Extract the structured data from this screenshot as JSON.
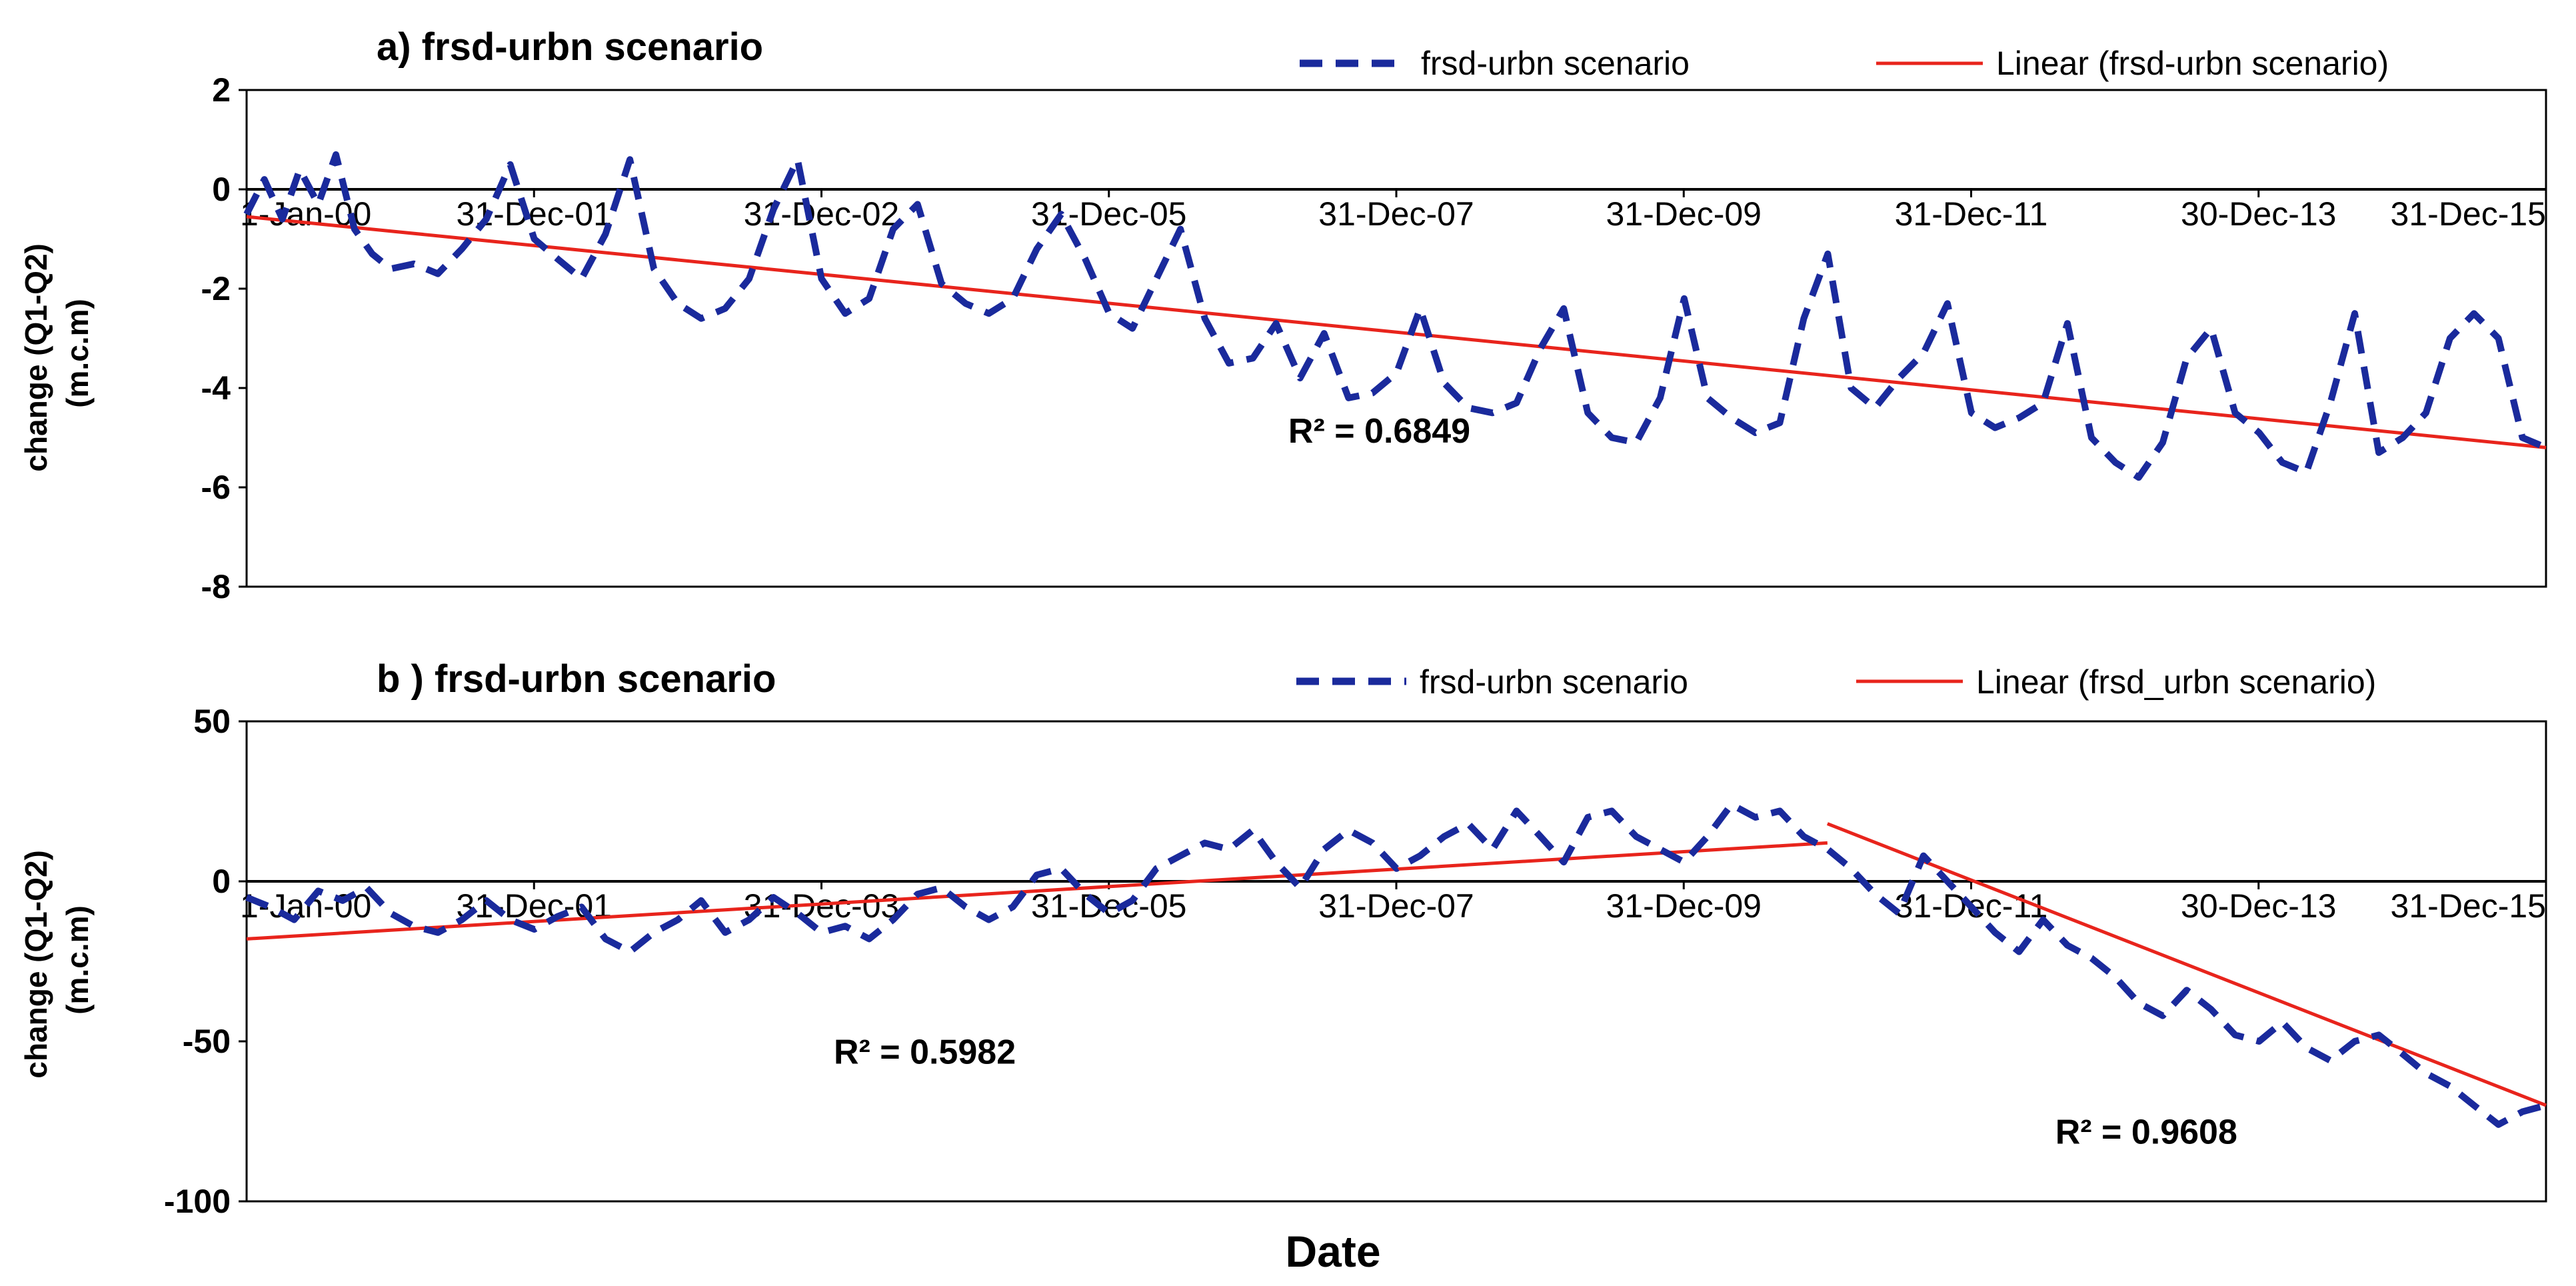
{
  "figure": {
    "xlabel": "Date",
    "colors": {
      "series": "#1a2a9c",
      "trend": "#e8241c",
      "axis": "#000000"
    }
  },
  "chart_data": [
    {
      "type": "line",
      "title": "a) frsd-urbn scenario",
      "ylabel": "change (Q1-Q2) (m.c.m)",
      "ylim": [
        -8,
        2
      ],
      "yticks": [
        "2",
        "0",
        "-2",
        "-4",
        "-6",
        "-8"
      ],
      "xlim": [
        "2000-01-01",
        "2015-12-31"
      ],
      "xtick_labels": [
        "1-Jan-00",
        "31-Dec-01",
        "31-Dec-02",
        "31-Dec-05",
        "31-Dec-07",
        "31-Dec-09",
        "31-Dec-11",
        "30-Dec-13",
        "31-Dec-15"
      ],
      "legend_position": "top-right",
      "series": [
        {
          "name": "frsd-urbn scenario",
          "style": "dashed",
          "x": [
            "2000-01-01",
            "2000-02-15",
            "2000-04-01",
            "2000-05-15",
            "2000-07-01",
            "2000-08-15",
            "2000-10-01",
            "2000-11-15",
            "2001-01-01",
            "2001-03-01",
            "2001-05-01",
            "2001-07-01",
            "2001-09-01",
            "2001-11-01",
            "2002-01-01",
            "2002-03-01",
            "2002-05-01",
            "2002-07-01",
            "2002-09-01",
            "2002-11-01",
            "2003-01-01",
            "2003-03-01",
            "2003-05-01",
            "2003-07-01",
            "2003-09-01",
            "2003-11-01",
            "2004-01-01",
            "2004-03-01",
            "2004-05-01",
            "2004-07-01",
            "2004-09-01",
            "2004-11-01",
            "2005-01-01",
            "2005-03-01",
            "2005-05-01",
            "2005-07-01",
            "2005-09-01",
            "2005-11-01",
            "2006-01-01",
            "2006-03-01",
            "2006-05-01",
            "2006-07-01",
            "2006-09-01",
            "2006-11-01",
            "2007-01-01",
            "2007-03-01",
            "2007-05-01",
            "2007-07-01",
            "2007-09-01",
            "2007-11-01",
            "2008-01-01",
            "2008-03-01",
            "2008-05-01",
            "2008-07-01",
            "2008-09-01",
            "2008-11-01",
            "2009-01-01",
            "2009-03-01",
            "2009-05-01",
            "2009-07-01",
            "2009-09-01",
            "2009-11-01",
            "2010-01-01",
            "2010-03-01",
            "2010-05-01",
            "2010-07-01",
            "2010-09-01",
            "2010-11-01",
            "2011-01-01",
            "2011-03-01",
            "2011-05-01",
            "2011-07-01",
            "2011-09-01",
            "2011-11-01",
            "2012-01-01",
            "2012-03-01",
            "2012-05-01",
            "2012-07-01",
            "2012-09-01",
            "2012-11-01",
            "2013-01-01",
            "2013-03-01",
            "2013-05-01",
            "2013-07-01",
            "2013-09-01",
            "2013-11-01",
            "2014-01-01",
            "2014-03-01",
            "2014-05-01",
            "2014-07-01",
            "2014-09-01",
            "2014-11-01",
            "2015-01-01",
            "2015-03-01",
            "2015-05-01",
            "2015-07-01",
            "2015-09-01",
            "2015-11-01",
            "2015-12-31"
          ],
          "y": [
            -0.5,
            0.2,
            -0.6,
            0.4,
            -0.3,
            0.7,
            -0.8,
            -1.3,
            -1.6,
            -1.5,
            -1.7,
            -1.2,
            -0.6,
            0.5,
            -1.0,
            -1.4,
            -1.8,
            -0.9,
            0.6,
            -1.6,
            -2.3,
            -2.6,
            -2.4,
            -1.8,
            -0.4,
            0.6,
            -1.8,
            -2.5,
            -2.2,
            -0.8,
            -0.3,
            -1.9,
            -2.3,
            -2.5,
            -2.2,
            -1.2,
            -0.5,
            -1.4,
            -2.5,
            -2.8,
            -1.8,
            -0.8,
            -2.6,
            -3.5,
            -3.4,
            -2.7,
            -3.8,
            -2.9,
            -4.2,
            -4.1,
            -3.7,
            -2.4,
            -3.9,
            -4.4,
            -4.5,
            -4.3,
            -3.2,
            -2.4,
            -4.5,
            -5.0,
            -5.1,
            -4.2,
            -2.2,
            -4.2,
            -4.6,
            -4.9,
            -4.7,
            -2.6,
            -1.3,
            -4.0,
            -4.4,
            -3.8,
            -3.3,
            -2.3,
            -4.5,
            -4.8,
            -4.6,
            -4.3,
            -2.7,
            -5.0,
            -5.5,
            -5.8,
            -5.1,
            -3.4,
            -2.8,
            -4.5,
            -4.9,
            -5.5,
            -5.7,
            -4.3,
            -2.5,
            -5.3,
            -5.0,
            -4.5,
            -3.0,
            -2.5,
            -3.0,
            -5.0,
            -5.2
          ]
        },
        {
          "name": "Linear (frsd-urbn scenario)",
          "style": "solid",
          "x": [
            "2000-01-01",
            "2015-12-31"
          ],
          "y": [
            -0.55,
            -5.2
          ]
        }
      ],
      "annotations": [
        {
          "text": "R² = 0.6849",
          "x": "2007-04-01",
          "y": -5.1
        }
      ]
    },
    {
      "type": "line",
      "title": "b ) frsd-urbn scenario",
      "ylabel": "change (Q1-Q2) (m.c.m)",
      "ylim": [
        -100,
        50
      ],
      "yticks": [
        "50",
        "0",
        "-50",
        "-100"
      ],
      "xlim": [
        "2000-01-01",
        "2015-12-31"
      ],
      "xtick_labels": [
        "1-Jan-00",
        "31-Dec-01",
        "31-Dec-03",
        "31-Dec-05",
        "31-Dec-07",
        "31-Dec-09",
        "31-Dec-11",
        "30-Dec-13",
        "31-Dec-15"
      ],
      "legend_position": "top-right",
      "series": [
        {
          "name": "frsd-urbn scenario",
          "style": "dashed",
          "x": [
            "2000-01-01",
            "2000-03-01",
            "2000-05-01",
            "2000-07-01",
            "2000-09-01",
            "2000-11-01",
            "2001-01-01",
            "2001-03-01",
            "2001-05-01",
            "2001-07-01",
            "2001-09-01",
            "2001-11-01",
            "2002-01-01",
            "2002-03-01",
            "2002-05-01",
            "2002-07-01",
            "2002-09-01",
            "2002-11-01",
            "2003-01-01",
            "2003-03-01",
            "2003-05-01",
            "2003-07-01",
            "2003-09-01",
            "2003-11-01",
            "2004-01-01",
            "2004-03-01",
            "2004-05-01",
            "2004-07-01",
            "2004-09-01",
            "2004-11-01",
            "2005-01-01",
            "2005-03-01",
            "2005-05-01",
            "2005-07-01",
            "2005-09-01",
            "2005-11-01",
            "2006-01-01",
            "2006-03-01",
            "2006-05-01",
            "2006-07-01",
            "2006-09-01",
            "2006-11-01",
            "2007-01-01",
            "2007-03-01",
            "2007-05-01",
            "2007-07-01",
            "2007-09-01",
            "2007-11-01",
            "2008-01-01",
            "2008-03-01",
            "2008-05-01",
            "2008-07-01",
            "2008-09-01",
            "2008-11-01",
            "2009-01-01",
            "2009-03-01",
            "2009-05-01",
            "2009-07-01",
            "2009-09-01",
            "2009-11-01",
            "2010-01-01",
            "2010-03-01",
            "2010-05-01",
            "2010-07-01",
            "2010-09-01",
            "2010-11-01",
            "2011-01-01",
            "2011-03-01",
            "2011-05-01",
            "2011-07-01",
            "2011-09-01",
            "2011-11-01",
            "2012-01-01",
            "2012-03-01",
            "2012-05-01",
            "2012-07-01",
            "2012-09-01",
            "2012-11-01",
            "2013-01-01",
            "2013-03-01",
            "2013-05-01",
            "2013-07-01",
            "2013-09-01",
            "2013-11-01",
            "2014-01-01",
            "2014-03-01",
            "2014-05-01",
            "2014-07-01",
            "2014-09-01",
            "2014-11-01",
            "2015-01-01",
            "2015-03-01",
            "2015-05-01",
            "2015-07-01",
            "2015-09-01",
            "2015-11-01",
            "2015-12-31"
          ],
          "y": [
            -5,
            -8,
            -12,
            -3,
            -6,
            -2,
            -10,
            -14,
            -16,
            -12,
            -6,
            -12,
            -15,
            -11,
            -8,
            -18,
            -22,
            -16,
            -12,
            -6,
            -16,
            -12,
            -5,
            -10,
            -16,
            -14,
            -18,
            -12,
            -4,
            -2,
            -8,
            -12,
            -8,
            2,
            4,
            -4,
            -10,
            -6,
            4,
            8,
            12,
            10,
            16,
            6,
            -2,
            10,
            16,
            12,
            4,
            8,
            14,
            18,
            10,
            22,
            14,
            6,
            20,
            22,
            14,
            10,
            6,
            14,
            24,
            20,
            22,
            14,
            10,
            4,
            -4,
            -10,
            8,
            0,
            -8,
            -16,
            -22,
            -12,
            -20,
            -24,
            -30,
            -38,
            -42,
            -34,
            -40,
            -48,
            -50,
            -44,
            -52,
            -56,
            -50,
            -48,
            -54,
            -60,
            -64,
            -70,
            -76,
            -72,
            -70
          ]
        },
        {
          "name": "Linear (frsd_urbn scenario)",
          "style": "solid",
          "segments": [
            {
              "x": [
                "2000-01-01",
                "2010-12-31"
              ],
              "y": [
                -18,
                12
              ]
            },
            {
              "x": [
                "2010-12-31",
                "2015-12-31"
              ],
              "y": [
                18,
                -70
              ]
            }
          ]
        }
      ],
      "annotations": [
        {
          "text": "R² = 0.5982",
          "x": "2004-02-01",
          "y": -57
        },
        {
          "text": "R² = 0.9608",
          "x": "2012-08-01",
          "y": -82
        }
      ]
    }
  ]
}
